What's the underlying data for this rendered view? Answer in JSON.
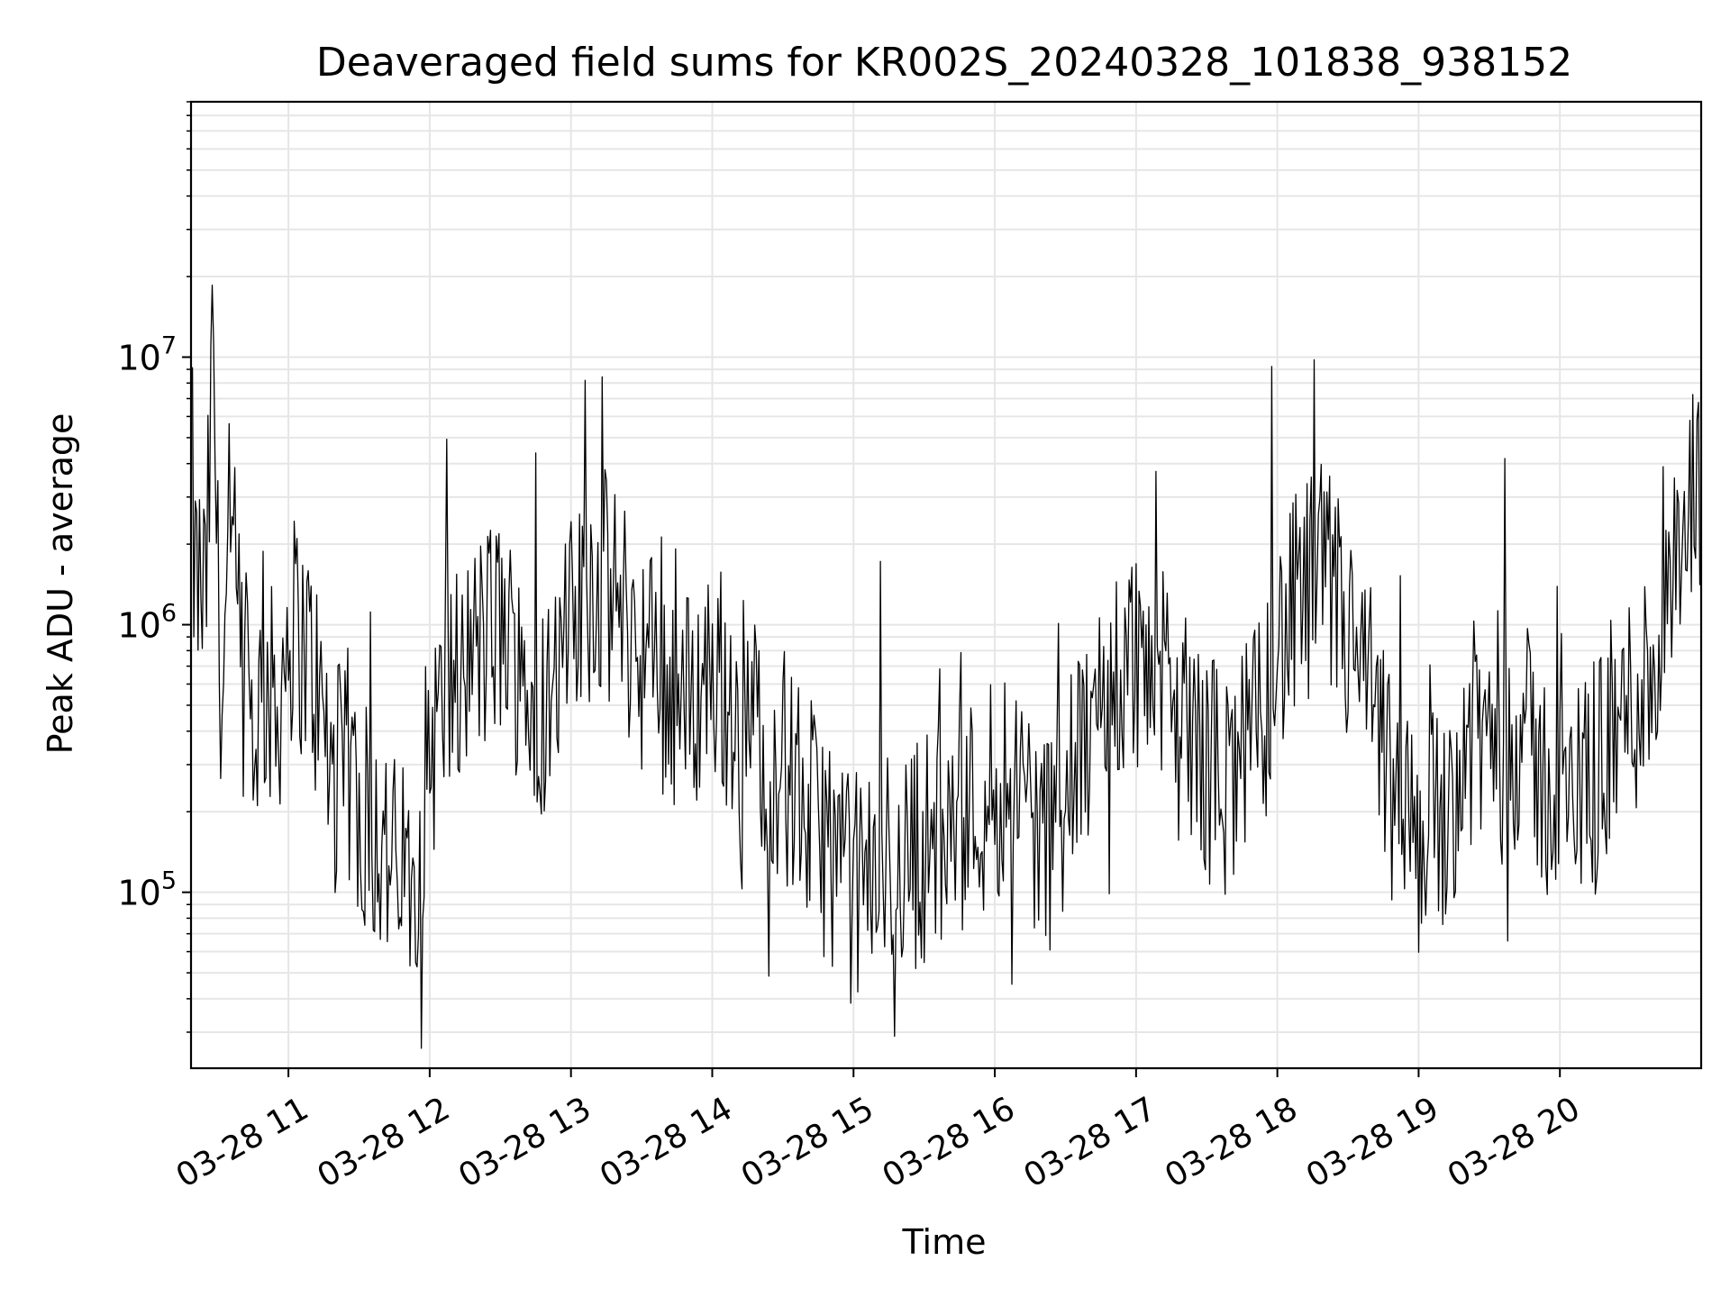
{
  "chart_data": {
    "type": "line",
    "title": "Deaveraged field sums for KR002S_20240328_101838_938152",
    "xlabel": "Time",
    "ylabel": "Peak ADU - average",
    "y_scale": "log",
    "ylim": [
      22000,
      90000000
    ],
    "xlim": [
      "2024-03-28 10:18:38",
      "2024-03-28 21:00:00"
    ],
    "x_ticks": [
      {
        "label": "03-28 11",
        "time": "2024-03-28 11:00"
      },
      {
        "label": "03-28 12",
        "time": "2024-03-28 12:00"
      },
      {
        "label": "03-28 13",
        "time": "2024-03-28 13:00"
      },
      {
        "label": "03-28 14",
        "time": "2024-03-28 14:00"
      },
      {
        "label": "03-28 15",
        "time": "2024-03-28 15:00"
      },
      {
        "label": "03-28 16",
        "time": "2024-03-28 16:00"
      },
      {
        "label": "03-28 17",
        "time": "2024-03-28 17:00"
      },
      {
        "label": "03-28 18",
        "time": "2024-03-28 18:00"
      },
      {
        "label": "03-28 19",
        "time": "2024-03-28 19:00"
      },
      {
        "label": "03-28 20",
        "time": "2024-03-28 20:00"
      }
    ],
    "y_ticks": [
      {
        "base": "10",
        "exp": "5",
        "value": 100000
      },
      {
        "base": "10",
        "exp": "6",
        "value": 1000000
      },
      {
        "base": "10",
        "exp": "7",
        "value": 10000000
      }
    ],
    "grid": true,
    "line_color": "#000000",
    "series": [
      {
        "x": [
          "2024-03-28 10:18:38",
          "2024-03-28 10:20",
          "2024-03-28 10:25",
          "2024-03-28 10:28",
          "2024-03-28 10:30",
          "2024-03-28 10:32",
          "2024-03-28 10:35",
          "2024-03-28 10:40",
          "2024-03-28 10:45",
          "2024-03-28 10:50",
          "2024-03-28 10:55",
          "2024-03-28 11:00",
          "2024-03-28 11:05",
          "2024-03-28 11:10",
          "2024-03-28 11:15",
          "2024-03-28 11:20",
          "2024-03-28 11:25",
          "2024-03-28 11:30",
          "2024-03-28 11:35",
          "2024-03-28 11:40",
          "2024-03-28 11:45",
          "2024-03-28 11:50",
          "2024-03-28 11:55",
          "2024-03-28 12:00",
          "2024-03-28 12:10",
          "2024-03-28 12:20",
          "2024-03-28 12:30",
          "2024-03-28 12:40",
          "2024-03-28 12:50",
          "2024-03-28 13:00",
          "2024-03-28 13:10",
          "2024-03-28 13:20",
          "2024-03-28 13:30",
          "2024-03-28 13:40",
          "2024-03-28 13:50",
          "2024-03-28 14:00",
          "2024-03-28 14:10",
          "2024-03-28 14:20",
          "2024-03-28 14:30",
          "2024-03-28 14:40",
          "2024-03-28 14:50",
          "2024-03-28 15:00",
          "2024-03-28 15:10",
          "2024-03-28 15:20",
          "2024-03-28 15:30",
          "2024-03-28 15:40",
          "2024-03-28 15:50",
          "2024-03-28 16:00",
          "2024-03-28 16:10",
          "2024-03-28 16:20",
          "2024-03-28 16:30",
          "2024-03-28 16:40",
          "2024-03-28 16:50",
          "2024-03-28 17:00",
          "2024-03-28 17:10",
          "2024-03-28 17:20",
          "2024-03-28 17:30",
          "2024-03-28 17:40",
          "2024-03-28 17:50",
          "2024-03-28 18:00",
          "2024-03-28 18:10",
          "2024-03-28 18:20",
          "2024-03-28 18:30",
          "2024-03-28 18:40",
          "2024-03-28 18:50",
          "2024-03-28 19:00",
          "2024-03-28 19:10",
          "2024-03-28 19:20",
          "2024-03-28 19:30",
          "2024-03-28 19:40",
          "2024-03-28 19:50",
          "2024-03-28 20:00",
          "2024-03-28 20:10",
          "2024-03-28 20:20",
          "2024-03-28 20:30",
          "2024-03-28 20:40",
          "2024-03-28 20:50",
          "2024-03-28 21:00"
        ],
        "y": [
          6000000,
          1500000,
          1200000,
          12000000,
          1400000,
          500000,
          2400000,
          700000,
          400000,
          600000,
          450000,
          1000000,
          900000,
          700000,
          400000,
          250000,
          300000,
          200000,
          180000,
          150000,
          120000,
          110000,
          150000,
          350000,
          600000,
          800000,
          1000000,
          600000,
          500000,
          900000,
          1500000,
          1200000,
          800000,
          600000,
          500000,
          700000,
          500000,
          400000,
          300000,
          200000,
          150000,
          100000,
          120000,
          130000,
          150000,
          170000,
          200000,
          250000,
          300000,
          150000,
          200000,
          400000,
          600000,
          800000,
          600000,
          400000,
          300000,
          250000,
          350000,
          800000,
          1200000,
          1500000,
          900000,
          500000,
          200000,
          150000,
          200000,
          350000,
          400000,
          450000,
          300000,
          200000,
          250000,
          350000,
          500000,
          700000,
          1500000,
          3500000
        ]
      }
    ]
  }
}
